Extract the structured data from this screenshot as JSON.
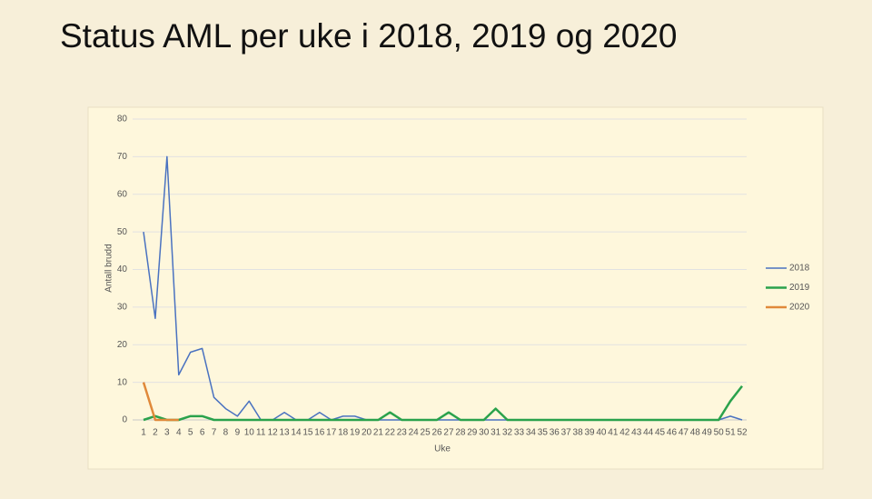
{
  "chart_data": {
    "type": "line",
    "title": "Status AML per uke i 2018, 2019 og 2020",
    "x_label": "Uke",
    "y_label": "Antall brudd",
    "categories": [
      1,
      2,
      3,
      4,
      5,
      6,
      7,
      8,
      9,
      10,
      11,
      12,
      13,
      14,
      15,
      16,
      17,
      18,
      19,
      20,
      21,
      22,
      23,
      24,
      25,
      26,
      27,
      28,
      29,
      30,
      31,
      32,
      33,
      34,
      35,
      36,
      37,
      38,
      39,
      40,
      41,
      42,
      43,
      44,
      45,
      46,
      47,
      48,
      49,
      50,
      51,
      52
    ],
    "series": [
      {
        "name": "2018",
        "color": "#4a72c0",
        "width": 1.5,
        "values": [
          50,
          27,
          70,
          12,
          18,
          19,
          6,
          3,
          1,
          5,
          0,
          0,
          2,
          0,
          0,
          2,
          0,
          1,
          1,
          0,
          0,
          0,
          0,
          0,
          0,
          0,
          0,
          0,
          0,
          0,
          0,
          0,
          0,
          0,
          0,
          0,
          0,
          0,
          0,
          0,
          0,
          0,
          0,
          0,
          0,
          0,
          0,
          0,
          0,
          0,
          1,
          0
        ]
      },
      {
        "name": "2019",
        "color": "#2aa24c",
        "width": 2.5,
        "values": [
          0,
          1,
          0,
          0,
          1,
          1,
          0,
          0,
          0,
          0,
          0,
          0,
          0,
          0,
          0,
          0,
          0,
          0,
          0,
          0,
          0,
          2,
          0,
          0,
          0,
          0,
          2,
          0,
          0,
          0,
          3,
          0,
          0,
          0,
          0,
          0,
          0,
          0,
          0,
          0,
          0,
          0,
          0,
          0,
          0,
          0,
          0,
          0,
          0,
          0,
          5,
          9
        ]
      },
      {
        "name": "2020",
        "color": "#e0893a",
        "width": 2.5,
        "values": [
          10,
          0,
          0,
          0,
          null,
          null,
          null,
          null,
          null,
          null,
          null,
          null,
          null,
          null,
          null,
          null,
          null,
          null,
          null,
          null,
          null,
          null,
          null,
          null,
          null,
          null,
          null,
          null,
          null,
          null,
          null,
          null,
          null,
          null,
          null,
          null,
          null,
          null,
          null,
          null,
          null,
          null,
          null,
          null,
          null,
          null,
          null,
          null,
          null,
          null,
          null,
          null
        ]
      }
    ],
    "ylim": [
      0,
      80
    ],
    "yticks": [
      0,
      10,
      20,
      30,
      40,
      50,
      60,
      70,
      80
    ],
    "grid": true,
    "legend": "right"
  }
}
